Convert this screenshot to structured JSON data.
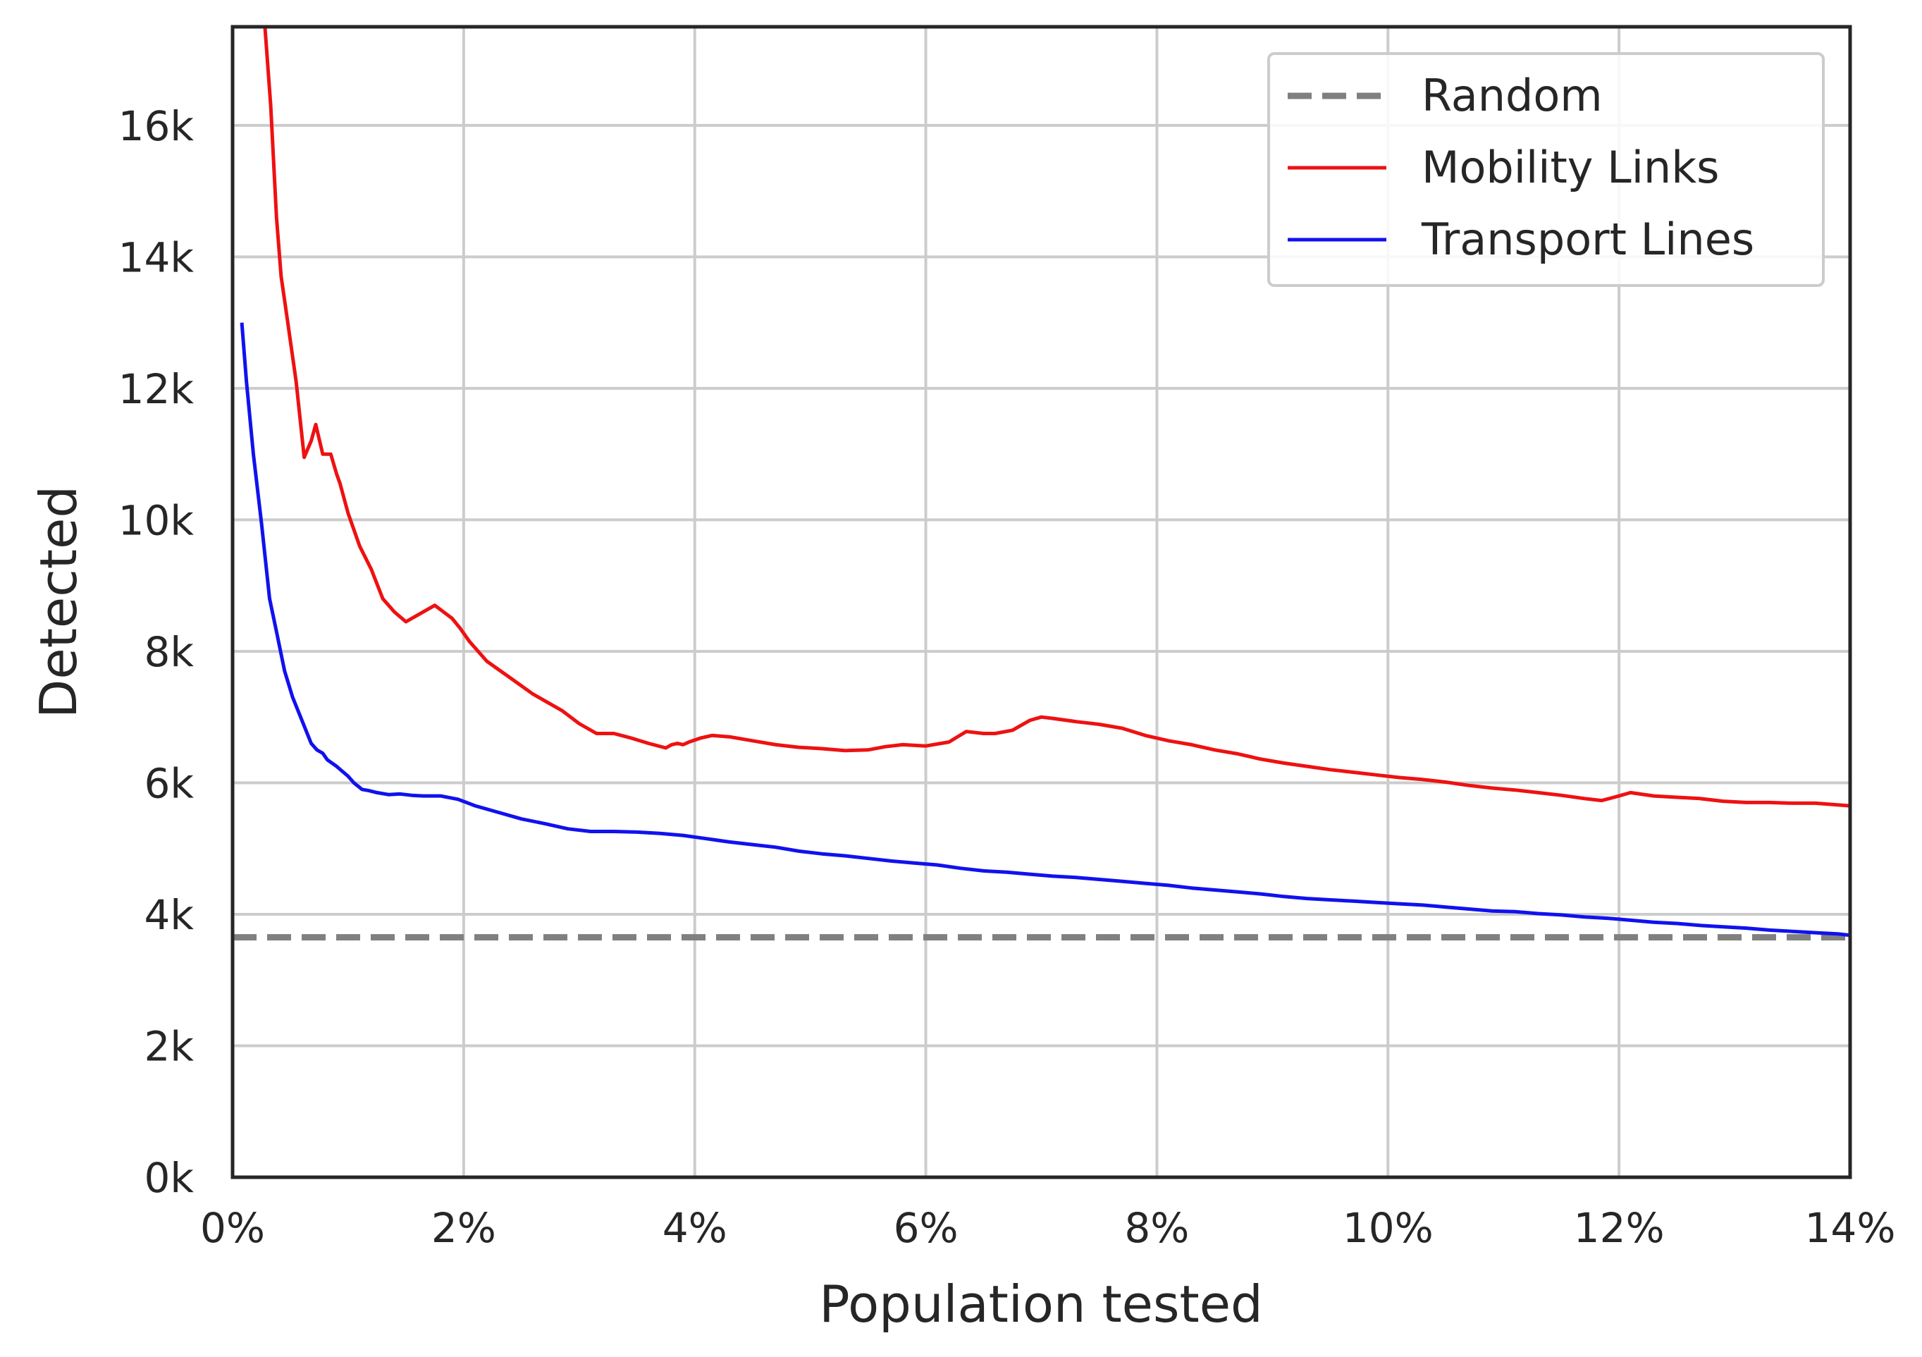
{
  "chart_data": {
    "type": "line",
    "xlabel": "Population tested",
    "ylabel": "Detected",
    "xlim": [
      0,
      14
    ],
    "ylim": [
      0,
      17500
    ],
    "grid": true,
    "legend_position": "top-right",
    "x_ticks": [
      0,
      2,
      4,
      6,
      8,
      10,
      12,
      14
    ],
    "x_tick_labels": [
      "0%",
      "2%",
      "4%",
      "6%",
      "8%",
      "10%",
      "12%",
      "14%"
    ],
    "y_ticks": [
      0,
      2000,
      4000,
      6000,
      8000,
      10000,
      12000,
      14000,
      16000
    ],
    "y_tick_labels": [
      "0k",
      "2k",
      "4k",
      "6k",
      "8k",
      "10k",
      "12k",
      "14k",
      "16k"
    ],
    "colors": {
      "grid": "#cccccc",
      "frame": "#262626",
      "text": "#262626"
    },
    "series": [
      {
        "name": "Random",
        "style": "dashed",
        "color": "#808080",
        "x": [
          0,
          14
        ],
        "y": [
          3650,
          3650
        ]
      },
      {
        "name": "Mobility Links",
        "style": "solid",
        "color": "#ee1111",
        "x": [
          0.28,
          0.33,
          0.38,
          0.42,
          0.47,
          0.55,
          0.62,
          0.68,
          0.72,
          0.78,
          0.85,
          0.9,
          0.93,
          1.0,
          1.1,
          1.2,
          1.3,
          1.4,
          1.5,
          1.6,
          1.75,
          1.9,
          1.97,
          2.05,
          2.2,
          2.4,
          2.6,
          2.7,
          2.85,
          3.0,
          3.15,
          3.3,
          3.45,
          3.6,
          3.75,
          3.8,
          3.85,
          3.9,
          3.95,
          4.05,
          4.15,
          4.3,
          4.5,
          4.7,
          4.9,
          5.1,
          5.3,
          5.5,
          5.65,
          5.8,
          6.0,
          6.2,
          6.35,
          6.5,
          6.6,
          6.75,
          6.9,
          7.0,
          7.1,
          7.3,
          7.5,
          7.7,
          7.9,
          8.1,
          8.3,
          8.5,
          8.7,
          8.9,
          9.1,
          9.3,
          9.5,
          9.7,
          9.9,
          10.1,
          10.3,
          10.5,
          10.7,
          10.9,
          11.1,
          11.3,
          11.5,
          11.7,
          11.85,
          12.0,
          12.1,
          12.3,
          12.5,
          12.7,
          12.9,
          13.1,
          13.3,
          13.5,
          13.7,
          13.85,
          14.0
        ],
        "y": [
          17500,
          16300,
          14600,
          13700,
          13100,
          12100,
          10950,
          11200,
          11450,
          11000,
          11000,
          10700,
          10550,
          10100,
          9600,
          9250,
          8800,
          8600,
          8450,
          8550,
          8700,
          8500,
          8350,
          8150,
          7850,
          7600,
          7350,
          7250,
          7100,
          6900,
          6750,
          6750,
          6680,
          6600,
          6530,
          6580,
          6600,
          6580,
          6620,
          6680,
          6720,
          6700,
          6640,
          6580,
          6540,
          6520,
          6490,
          6500,
          6550,
          6580,
          6560,
          6620,
          6780,
          6750,
          6750,
          6800,
          6950,
          7000,
          6980,
          6930,
          6890,
          6830,
          6720,
          6640,
          6580,
          6500,
          6440,
          6360,
          6300,
          6250,
          6200,
          6160,
          6120,
          6080,
          6050,
          6010,
          5960,
          5920,
          5890,
          5850,
          5810,
          5760,
          5730,
          5800,
          5850,
          5800,
          5780,
          5760,
          5720,
          5700,
          5700,
          5690,
          5690,
          5670,
          5650
        ]
      },
      {
        "name": "Transport Lines",
        "style": "solid",
        "color": "#1111ee",
        "x": [
          0.08,
          0.12,
          0.18,
          0.25,
          0.32,
          0.38,
          0.45,
          0.52,
          0.6,
          0.68,
          0.73,
          0.78,
          0.82,
          0.9,
          1.0,
          1.05,
          1.12,
          1.18,
          1.25,
          1.35,
          1.45,
          1.55,
          1.65,
          1.8,
          1.95,
          2.1,
          2.3,
          2.5,
          2.7,
          2.9,
          3.1,
          3.3,
          3.5,
          3.7,
          3.9,
          4.1,
          4.3,
          4.5,
          4.7,
          4.9,
          5.1,
          5.3,
          5.5,
          5.7,
          5.9,
          6.1,
          6.3,
          6.5,
          6.7,
          6.9,
          7.1,
          7.3,
          7.5,
          7.7,
          7.9,
          8.1,
          8.3,
          8.5,
          8.7,
          8.9,
          9.1,
          9.3,
          9.5,
          9.7,
          9.9,
          10.1,
          10.3,
          10.5,
          10.7,
          10.9,
          11.1,
          11.3,
          11.5,
          11.7,
          11.9,
          12.1,
          12.3,
          12.5,
          12.7,
          12.9,
          13.1,
          13.3,
          13.5,
          13.7,
          13.9,
          14.0
        ],
        "y": [
          13000,
          12100,
          11000,
          9950,
          8800,
          8300,
          7700,
          7300,
          6950,
          6600,
          6500,
          6450,
          6350,
          6250,
          6100,
          6000,
          5900,
          5880,
          5850,
          5820,
          5830,
          5810,
          5800,
          5800,
          5750,
          5650,
          5550,
          5450,
          5380,
          5300,
          5260,
          5260,
          5250,
          5230,
          5200,
          5150,
          5100,
          5060,
          5020,
          4960,
          4920,
          4890,
          4850,
          4810,
          4780,
          4750,
          4700,
          4660,
          4640,
          4610,
          4580,
          4560,
          4530,
          4500,
          4470,
          4440,
          4400,
          4370,
          4340,
          4310,
          4270,
          4240,
          4220,
          4200,
          4180,
          4160,
          4140,
          4110,
          4080,
          4050,
          4040,
          4010,
          3990,
          3960,
          3940,
          3910,
          3880,
          3860,
          3830,
          3810,
          3790,
          3760,
          3740,
          3720,
          3700,
          3680
        ]
      }
    ]
  }
}
